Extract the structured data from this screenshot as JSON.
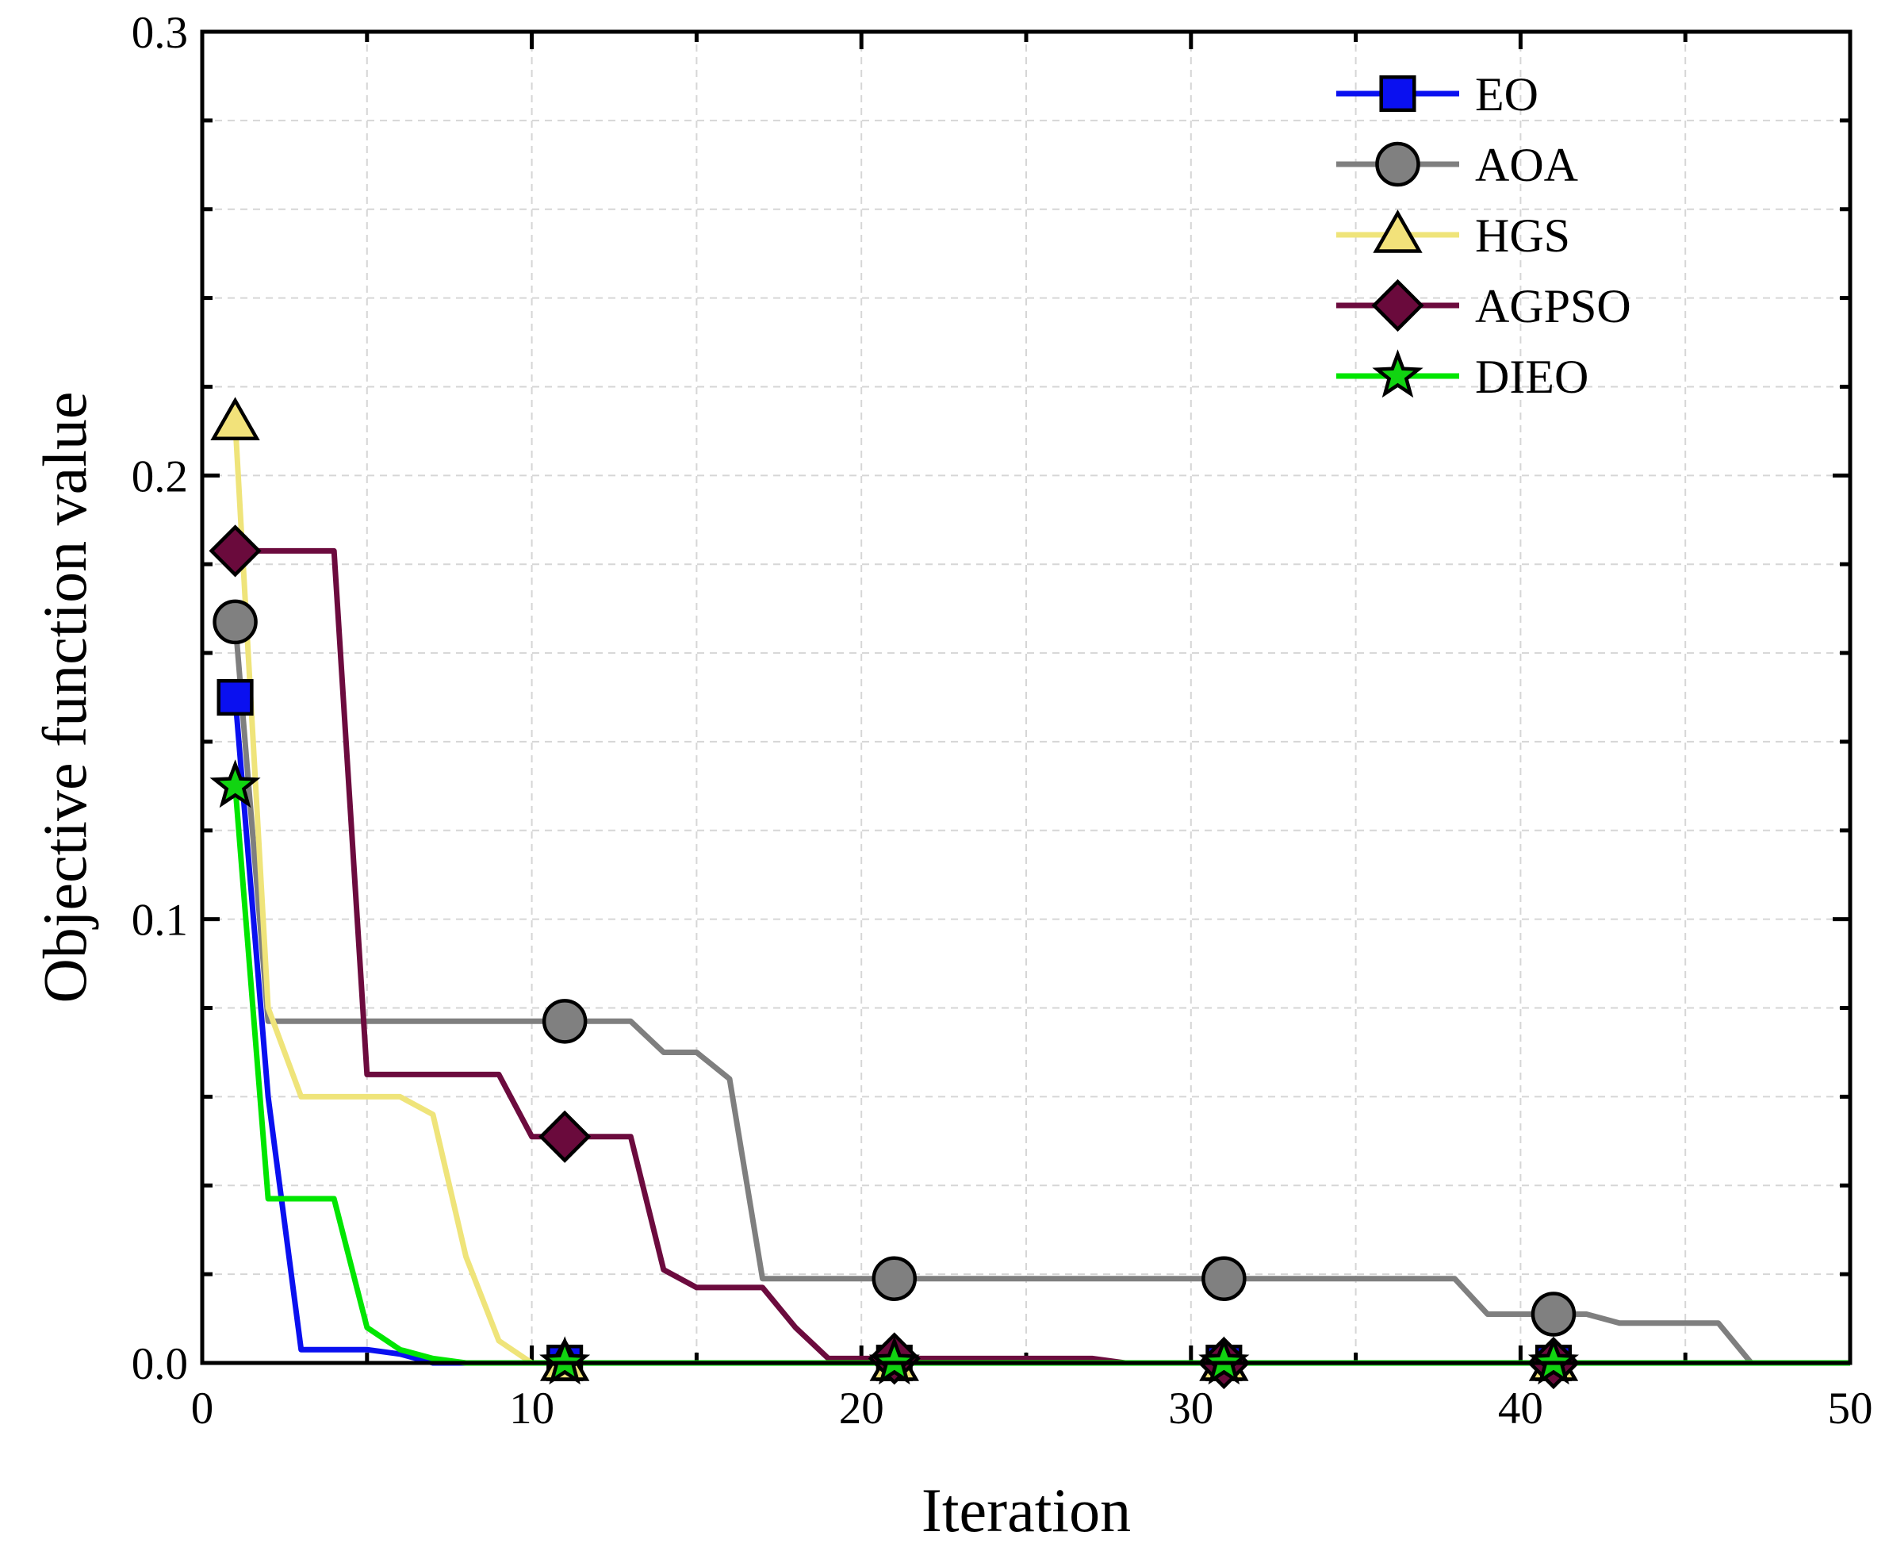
{
  "chart_data": {
    "type": "line",
    "title": "",
    "xlabel": "Iteration",
    "ylabel": "Objective function value",
    "xlim": [
      0,
      50
    ],
    "ylim": [
      0,
      0.3
    ],
    "xticks": [
      "0",
      "10",
      "20",
      "30",
      "40",
      "50"
    ],
    "yticks": [
      "0.0",
      "0.1",
      "0.2",
      "0.3"
    ],
    "grid": true,
    "legend_position": "top-right",
    "x": [
      1,
      2,
      3,
      4,
      5,
      6,
      7,
      8,
      9,
      10,
      11,
      12,
      13,
      14,
      15,
      16,
      17,
      18,
      19,
      20,
      21,
      22,
      23,
      24,
      25,
      26,
      27,
      28,
      29,
      30,
      31,
      32,
      33,
      34,
      35,
      36,
      37,
      38,
      39,
      40,
      41,
      42,
      43,
      44,
      45,
      46,
      47,
      48,
      49,
      50
    ],
    "marker_x": [
      1,
      11,
      21,
      31,
      41
    ],
    "series": [
      {
        "name": "EO",
        "color": "#0a10f0",
        "marker": "square",
        "marker_fill": "#0a10f0",
        "values": [
          0.15,
          0.06,
          0.003,
          0.003,
          0.003,
          0.002,
          0,
          0,
          0,
          0,
          0,
          0,
          0,
          0,
          0,
          0,
          0,
          0,
          0,
          0,
          0,
          0,
          0,
          0,
          0,
          0,
          0,
          0,
          0,
          0,
          0,
          0,
          0,
          0,
          0,
          0,
          0,
          0,
          0,
          0,
          0,
          0,
          0,
          0,
          0,
          0,
          0,
          0,
          0,
          0
        ]
      },
      {
        "name": "AOA",
        "color": "#7f7f7f",
        "marker": "circle",
        "marker_fill": "#808080",
        "values": [
          0.167,
          0.077,
          0.077,
          0.077,
          0.077,
          0.077,
          0.077,
          0.077,
          0.077,
          0.077,
          0.077,
          0.077,
          0.077,
          0.07,
          0.07,
          0.064,
          0.019,
          0.019,
          0.019,
          0.019,
          0.019,
          0.019,
          0.019,
          0.019,
          0.019,
          0.019,
          0.019,
          0.019,
          0.019,
          0.019,
          0.019,
          0.019,
          0.019,
          0.019,
          0.019,
          0.019,
          0.019,
          0.019,
          0.011,
          0.011,
          0.011,
          0.011,
          0.009,
          0.009,
          0.009,
          0.009,
          0,
          0,
          0,
          0
        ]
      },
      {
        "name": "HGS",
        "color": "#efe47a",
        "marker": "triangle",
        "marker_fill": "#f2e27a",
        "values": [
          0.212,
          0.08,
          0.06,
          0.06,
          0.06,
          0.06,
          0.056,
          0.024,
          0.005,
          0,
          0,
          0,
          0,
          0,
          0,
          0,
          0,
          0,
          0,
          0,
          0,
          0,
          0,
          0,
          0,
          0,
          0,
          0,
          0,
          0,
          0,
          0,
          0,
          0,
          0,
          0,
          0,
          0,
          0,
          0,
          0,
          0,
          0,
          0,
          0,
          0,
          0,
          0,
          0,
          0
        ]
      },
      {
        "name": "AGPSO",
        "color": "#6c0b3e",
        "marker": "diamond",
        "marker_fill": "#6a0a3c",
        "values": [
          0.183,
          0.183,
          0.183,
          0.183,
          0.065,
          0.065,
          0.065,
          0.065,
          0.065,
          0.051,
          0.051,
          0.051,
          0.051,
          0.021,
          0.017,
          0.017,
          0.017,
          0.008,
          0.001,
          0.001,
          0.001,
          0.001,
          0.001,
          0.001,
          0.001,
          0.001,
          0.001,
          0,
          0,
          0,
          0,
          0,
          0,
          0,
          0,
          0,
          0,
          0,
          0,
          0,
          0,
          0,
          0,
          0,
          0,
          0,
          0,
          0,
          0,
          0
        ]
      },
      {
        "name": "DIEO",
        "color": "#00e600",
        "marker": "star",
        "marker_fill": "#11d411",
        "values": [
          0.13,
          0.037,
          0.037,
          0.037,
          0.008,
          0.003,
          0.001,
          0,
          0,
          0,
          0,
          0,
          0,
          0,
          0,
          0,
          0,
          0,
          0,
          0,
          0,
          0,
          0,
          0,
          0,
          0,
          0,
          0,
          0,
          0,
          0,
          0,
          0,
          0,
          0,
          0,
          0,
          0,
          0,
          0,
          0,
          0,
          0,
          0,
          0,
          0,
          0,
          0,
          0,
          0
        ]
      }
    ]
  }
}
